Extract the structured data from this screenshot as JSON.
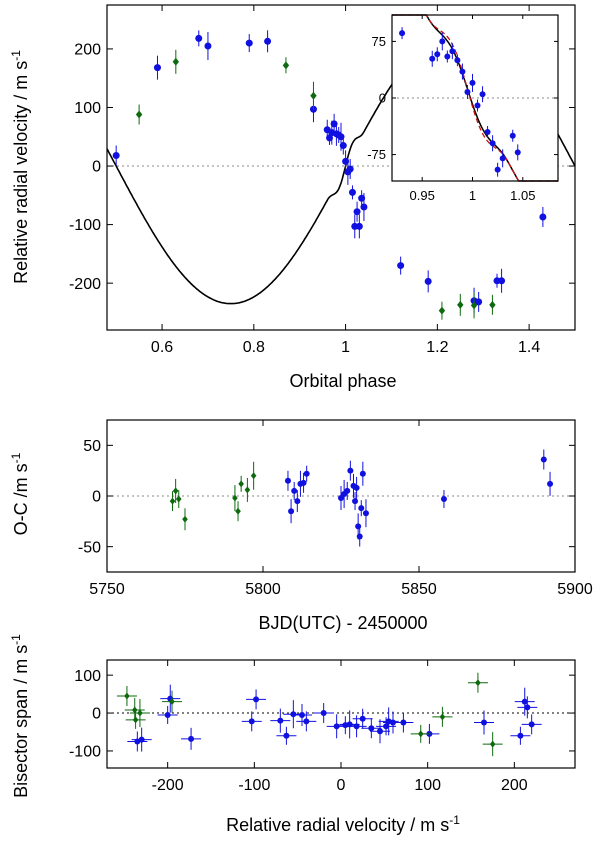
{
  "colors": {
    "blue": "#1010e0",
    "green": "#0e6a0e",
    "model": "#000000",
    "model2": "#cc1010",
    "grid": "#888888"
  },
  "chart_data": [
    {
      "type": "scatter",
      "xlabel": "Orbital phase",
      "ylabel": "Relative radial velocity / m s",
      "xlim": [
        0.48,
        1.5
      ],
      "ylim": [
        -280,
        275
      ],
      "xticks": [
        "0.6",
        "0.8",
        "1",
        "1.2",
        "1.4"
      ],
      "yticks": [
        "200",
        "100",
        "0",
        "-100",
        "-200"
      ],
      "series": [
        {
          "marker": "circle",
          "color": "blue",
          "x": [
            0.5,
            0.59,
            0.68,
            0.7,
            0.79,
            0.83,
            0.93,
            0.96,
            0.965,
            0.97,
            0.975,
            0.98,
            0.985,
            0.99,
            0.995,
            1.0,
            1.005,
            1.01,
            1.015,
            1.02,
            1.025,
            1.03,
            1.035,
            1.04,
            1.12,
            1.18,
            1.28,
            1.29,
            1.33,
            1.34,
            1.43
          ],
          "y": [
            18,
            168,
            218,
            205,
            210,
            213,
            97,
            62,
            48,
            57,
            72,
            55,
            53,
            50,
            35,
            8,
            -10,
            -5,
            -45,
            -103,
            -78,
            -103,
            -55,
            -70,
            -170,
            -197,
            -230,
            -232,
            -196,
            -196,
            -87
          ]
        },
        {
          "marker": "diamond",
          "color": "green",
          "x": [
            0.55,
            0.63,
            0.87,
            0.93,
            1.21,
            1.25,
            1.28,
            1.32
          ],
          "y": [
            88,
            178,
            172,
            120,
            -247,
            -237,
            -238,
            -237
          ]
        }
      ],
      "model": {
        "K": 235,
        "center": 1.0,
        "transit_phase": [
          0.96,
          1.04
        ]
      }
    },
    {
      "type": "scatter",
      "inset": true,
      "xlim": [
        0.92,
        1.085
      ],
      "ylim": [
        -110,
        110
      ],
      "xticks": [
        "0.95",
        "1",
        "1.05"
      ],
      "yticks": [
        "75",
        "0",
        "-75"
      ],
      "series": [
        {
          "marker": "circle",
          "color": "blue",
          "x": [
            0.93,
            0.96,
            0.965,
            0.97,
            0.975,
            0.98,
            0.985,
            0.99,
            0.995,
            1.0,
            1.005,
            1.01,
            1.015,
            1.02,
            1.025,
            1.03,
            1.04,
            1.045
          ],
          "y": [
            86,
            52,
            58,
            75,
            55,
            62,
            50,
            35,
            8,
            20,
            -10,
            5,
            -45,
            -60,
            -95,
            -80,
            -50,
            -72
          ]
        }
      ]
    },
    {
      "type": "scatter",
      "xlabel": "BJD(UTC) - 2450000",
      "ylabel": "O-C /m s",
      "xlim": [
        5750,
        5900
      ],
      "ylim": [
        -75,
        75
      ],
      "xticks": [
        "5750",
        "5800",
        "5850",
        "5900"
      ],
      "yticks": [
        "50",
        "0",
        "-50"
      ],
      "series": [
        {
          "marker": "circle",
          "color": "blue",
          "x": [
            5808,
            5809,
            5810,
            5811,
            5812,
            5813,
            5814,
            5825,
            5826,
            5827,
            5828,
            5829,
            5829.5,
            5830,
            5830.5,
            5831,
            5831.5,
            5832,
            5833,
            5858,
            5890,
            5892
          ],
          "y": [
            15,
            -15,
            5,
            -5,
            12,
            13,
            22,
            -2,
            2,
            5,
            25,
            10,
            -5,
            8,
            -30,
            -40,
            -12,
            22,
            -17,
            -3,
            36,
            12
          ]
        },
        {
          "marker": "diamond",
          "color": "green",
          "x": [
            5771,
            5772,
            5773,
            5775,
            5791,
            5792,
            5793,
            5795,
            5797
          ],
          "y": [
            -5,
            5,
            -3,
            -23,
            -2,
            -15,
            12,
            6,
            20
          ]
        }
      ]
    },
    {
      "type": "scatter",
      "xlabel": "Relative radial velocity / m s",
      "ylabel": "Bisector span / m s",
      "xlim": [
        -270,
        270
      ],
      "ylim": [
        -145,
        140
      ],
      "xticks": [
        "-200",
        "-100",
        "0",
        "100",
        "200"
      ],
      "yticks": [
        "100",
        "0",
        "-100"
      ],
      "series": [
        {
          "marker": "circle",
          "color": "blue",
          "x": [
            -235,
            -230,
            -200,
            -197,
            -173,
            -103,
            -98,
            -70,
            -63,
            -55,
            -45,
            -40,
            -20,
            -5,
            5,
            10,
            18,
            25,
            35,
            45,
            52,
            55,
            60,
            72,
            102,
            165,
            207,
            212,
            215,
            220
          ],
          "y": [
            -75,
            -70,
            -5,
            38,
            -68,
            -22,
            36,
            -20,
            -60,
            -3,
            -5,
            -22,
            0,
            -35,
            -32,
            -30,
            -35,
            -15,
            -40,
            -48,
            -35,
            -22,
            -25,
            -25,
            -55,
            -25,
            -60,
            30,
            15,
            -30
          ]
        },
        {
          "marker": "diamond",
          "color": "green",
          "x": [
            -247,
            -238,
            -237,
            -232,
            -195,
            117,
            158,
            175,
            92
          ],
          "y": [
            45,
            8,
            -18,
            0,
            30,
            -10,
            80,
            -82,
            -55
          ]
        }
      ]
    }
  ]
}
